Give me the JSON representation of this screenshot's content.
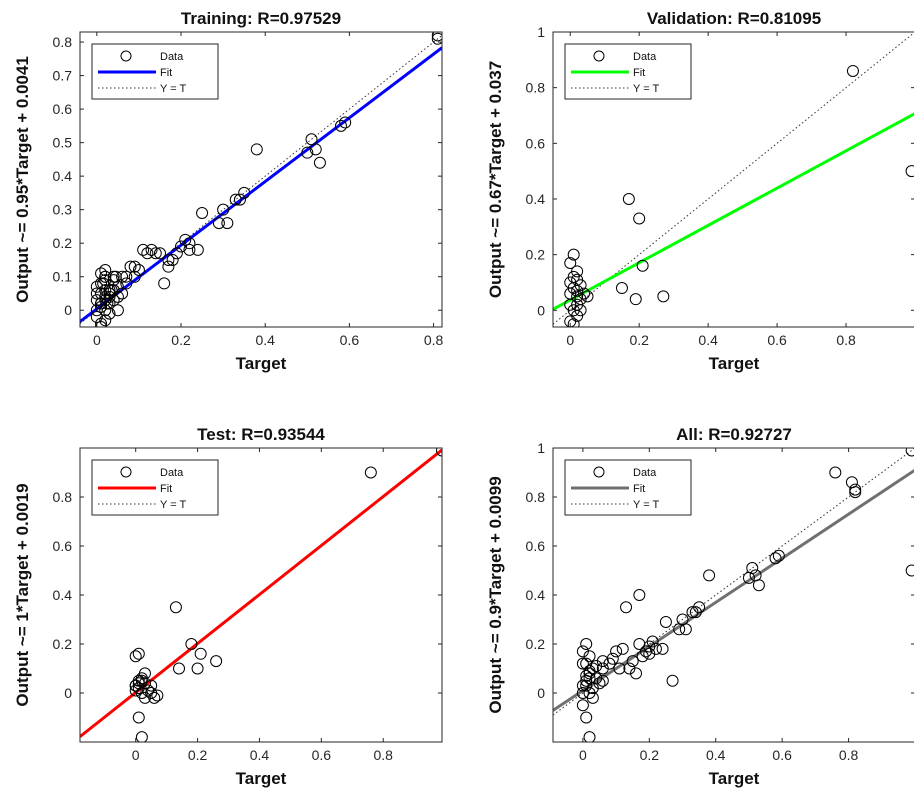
{
  "chart_data": [
    {
      "type": "scatter",
      "title": "Training: R=0.97529",
      "xlabel": "Target",
      "ylabel": "Output ~= 0.95*Target + 0.0041",
      "xlim": [
        -0.04,
        0.82
      ],
      "ylim": [
        -0.05,
        0.83
      ],
      "xticks": [
        0,
        0.2,
        0.4,
        0.6,
        0.8
      ],
      "xtick_labels": [
        "0",
        "0.2",
        "0.4",
        "0.6",
        "0.8"
      ],
      "yticks": [
        0,
        0.1,
        0.2,
        0.3,
        0.4,
        0.5,
        0.6,
        0.7,
        0.8
      ],
      "ytick_labels": [
        "0",
        "0.1",
        "0.2",
        "0.3",
        "0.4",
        "0.5",
        "0.6",
        "0.7",
        "0.8"
      ],
      "fit": {
        "slope": 0.95,
        "intercept": 0.0041,
        "color": "#0000ff"
      },
      "legend": {
        "data_label": "Data",
        "fit_label": "Fit",
        "yt_label": "Y = T",
        "location": "top-left"
      },
      "series": [
        {
          "x": [
            0.01,
            0.02,
            0.0,
            0.03,
            0.01,
            0.02,
            0.04,
            0.05,
            0.01,
            0.03,
            0.0,
            0.02,
            0.06,
            0.07,
            0.02,
            0.01,
            0.04,
            0.03,
            0.05,
            0.08,
            0.1,
            0.12,
            0.11,
            0.09,
            0.02,
            0.0,
            0.01,
            0.03,
            0.05,
            0.04,
            0.02,
            0.01,
            0.0,
            0.015,
            0.025,
            0.035,
            0.045,
            0.01,
            0.02,
            0.03,
            0.17,
            0.18,
            0.2,
            0.21,
            0.19,
            0.22,
            0.16,
            0.15,
            0.24,
            0.25,
            0.29,
            0.3,
            0.31,
            0.33,
            0.35,
            0.34,
            0.38,
            0.5,
            0.51,
            0.52,
            0.53,
            0.58,
            0.59,
            0.81,
            0.81,
            0.0,
            0.01,
            0.02,
            0.06,
            0.09,
            0.13,
            0.07,
            0.02,
            0.04,
            0.14,
            0.17,
            0.22
          ],
          "y": [
            0.01,
            0.03,
            -0.02,
            0.05,
            0.08,
            0.1,
            0.06,
            0.04,
            -0.04,
            0.02,
            0.07,
            0.09,
            0.05,
            0.1,
            0.12,
            0.11,
            0.03,
            -0.01,
            0.0,
            0.13,
            0.12,
            0.17,
            0.18,
            0.1,
            -0.03,
            0.0,
            0.02,
            0.06,
            0.07,
            0.09,
            0.04,
            0.05,
            0.03,
            0.08,
            0.02,
            0.06,
            0.1,
            -0.05,
            0.1,
            0.04,
            0.13,
            0.15,
            0.19,
            0.21,
            0.17,
            0.18,
            0.08,
            0.17,
            0.18,
            0.29,
            0.26,
            0.3,
            0.26,
            0.33,
            0.35,
            0.33,
            0.48,
            0.47,
            0.51,
            0.48,
            0.44,
            0.55,
            0.56,
            0.82,
            0.81,
            0.05,
            0.02,
            0.0,
            0.1,
            0.13,
            0.18,
            0.08,
            0.06,
            0.1,
            0.17,
            0.15,
            0.2
          ]
        }
      ]
    },
    {
      "type": "scatter",
      "title": "Validation: R=0.81095",
      "xlabel": "Target",
      "ylabel": "Output ~= 0.67*Target + 0.037",
      "xlim": [
        -0.05,
        1.0
      ],
      "ylim": [
        -0.06,
        1.0
      ],
      "xticks": [
        0,
        0.2,
        0.4,
        0.6,
        0.8
      ],
      "xtick_labels": [
        "0",
        "0.2",
        "0.4",
        "0.6",
        "0.8"
      ],
      "yticks": [
        0,
        0.2,
        0.4,
        0.6,
        0.8,
        1
      ],
      "ytick_labels": [
        "0",
        "0.2",
        "0.4",
        "0.6",
        "0.8",
        "1"
      ],
      "fit": {
        "slope": 0.67,
        "intercept": 0.037,
        "color": "#00ff00"
      },
      "legend": {
        "data_label": "Data",
        "fit_label": "Fit",
        "yt_label": "Y = T",
        "location": "top-left"
      },
      "series": [
        {
          "x": [
            0.0,
            0.01,
            0.02,
            0.0,
            0.01,
            0.02,
            0.03,
            0.0,
            0.01,
            0.02,
            0.04,
            0.05,
            0.0,
            0.01,
            0.02,
            0.03,
            0.01,
            0.02,
            0.15,
            0.17,
            0.2,
            0.21,
            0.19,
            0.27,
            0.82,
            0.99,
            0.0,
            0.02,
            0.03
          ],
          "y": [
            0.17,
            0.2,
            0.14,
            0.1,
            0.08,
            0.05,
            0.04,
            0.02,
            0.0,
            -0.02,
            0.06,
            0.05,
            -0.04,
            -0.05,
            0.02,
            0.09,
            0.12,
            0.07,
            0.08,
            0.4,
            0.33,
            0.16,
            0.04,
            0.05,
            0.86,
            0.5,
            0.06,
            0.11,
            0.0
          ]
        }
      ]
    },
    {
      "type": "scatter",
      "title": "Test: R=0.93544",
      "xlabel": "Target",
      "ylabel": "Output ~= 1*Target + 0.0019",
      "xlim": [
        -0.18,
        0.99
      ],
      "ylim": [
        -0.2,
        1.0
      ],
      "xticks": [
        0,
        0.2,
        0.4,
        0.6,
        0.8
      ],
      "xtick_labels": [
        "0",
        "0.2",
        "0.4",
        "0.6",
        "0.8"
      ],
      "yticks": [
        0,
        0.2,
        0.4,
        0.6,
        0.8
      ],
      "ytick_labels": [
        "0",
        "0.2",
        "0.4",
        "0.6",
        "0.8"
      ],
      "fit": {
        "slope": 1.0,
        "intercept": 0.0019,
        "color": "#ff0000"
      },
      "legend": {
        "data_label": "Data",
        "fit_label": "Fit",
        "yt_label": "Y = T",
        "location": "top-left"
      },
      "series": [
        {
          "x": [
            0.0,
            0.01,
            0.02,
            0.01,
            0.0,
            0.02,
            0.03,
            0.04,
            0.05,
            0.01,
            0.02,
            0.03,
            0.06,
            0.07,
            0.0,
            0.01,
            0.13,
            0.14,
            0.18,
            0.2,
            0.21,
            0.26,
            0.76,
            0.99,
            0.01,
            0.0,
            0.02,
            0.05,
            0.03
          ],
          "y": [
            0.03,
            0.02,
            0.0,
            0.16,
            0.15,
            0.05,
            0.08,
            0.01,
            0.03,
            -0.1,
            -0.18,
            0.04,
            -0.02,
            -0.01,
            0.03,
            0.05,
            0.35,
            0.1,
            0.2,
            0.1,
            0.16,
            0.13,
            0.9,
            0.99,
            0.04,
            0.01,
            0.06,
            0.0,
            -0.02
          ]
        }
      ]
    },
    {
      "type": "scatter",
      "title": "All: R=0.92727",
      "xlabel": "Target",
      "ylabel": "Output ~= 0.9*Target + 0.0099",
      "xlim": [
        -0.09,
        1.0
      ],
      "ylim": [
        -0.2,
        1.0
      ],
      "xticks": [
        0,
        0.2,
        0.4,
        0.6,
        0.8
      ],
      "xtick_labels": [
        "0",
        "0.2",
        "0.4",
        "0.6",
        "0.8"
      ],
      "yticks": [
        0,
        0.2,
        0.4,
        0.6,
        0.8,
        1
      ],
      "ytick_labels": [
        "0",
        "0.2",
        "0.4",
        "0.6",
        "0.8",
        "1"
      ],
      "fit": {
        "slope": 0.9,
        "intercept": 0.0099,
        "color": "#707070"
      },
      "legend": {
        "data_label": "Data",
        "fit_label": "Fit",
        "yt_label": "Y = T",
        "location": "top-left"
      },
      "series": [
        {
          "x": [
            0.0,
            0.01,
            0.02,
            0.03,
            0.01,
            0.02,
            0.0,
            0.01,
            0.02,
            0.03,
            0.04,
            0.05,
            0.06,
            0.0,
            0.01,
            0.02,
            0.03,
            0.01,
            0.02,
            0.04,
            0.06,
            0.08,
            0.1,
            0.12,
            0.11,
            0.09,
            0.13,
            0.15,
            0.17,
            0.18,
            0.2,
            0.21,
            0.19,
            0.22,
            0.16,
            0.24,
            0.25,
            0.27,
            0.29,
            0.3,
            0.31,
            0.33,
            0.35,
            0.34,
            0.38,
            0.5,
            0.51,
            0.52,
            0.53,
            0.58,
            0.59,
            0.76,
            0.81,
            0.82,
            0.82,
            0.99,
            0.99,
            0.0,
            0.01,
            0.02,
            0.0,
            0.14,
            0.17,
            0.2,
            0.06
          ],
          "y": [
            0.03,
            0.05,
            0.08,
            0.1,
            0.12,
            0.15,
            0.17,
            0.2,
            0.0,
            -0.02,
            0.06,
            0.04,
            0.1,
            -0.05,
            -0.1,
            -0.18,
            0.02,
            0.07,
            0.09,
            0.11,
            0.13,
            0.12,
            0.17,
            0.18,
            0.1,
            0.14,
            0.35,
            0.13,
            0.4,
            0.15,
            0.19,
            0.21,
            0.17,
            0.18,
            0.08,
            0.18,
            0.29,
            0.05,
            0.26,
            0.3,
            0.26,
            0.33,
            0.35,
            0.33,
            0.48,
            0.47,
            0.51,
            0.48,
            0.44,
            0.55,
            0.56,
            0.9,
            0.86,
            0.82,
            0.83,
            0.99,
            0.5,
            0.0,
            0.03,
            0.06,
            0.12,
            0.1,
            0.2,
            0.16,
            0.05
          ]
        }
      ]
    }
  ]
}
